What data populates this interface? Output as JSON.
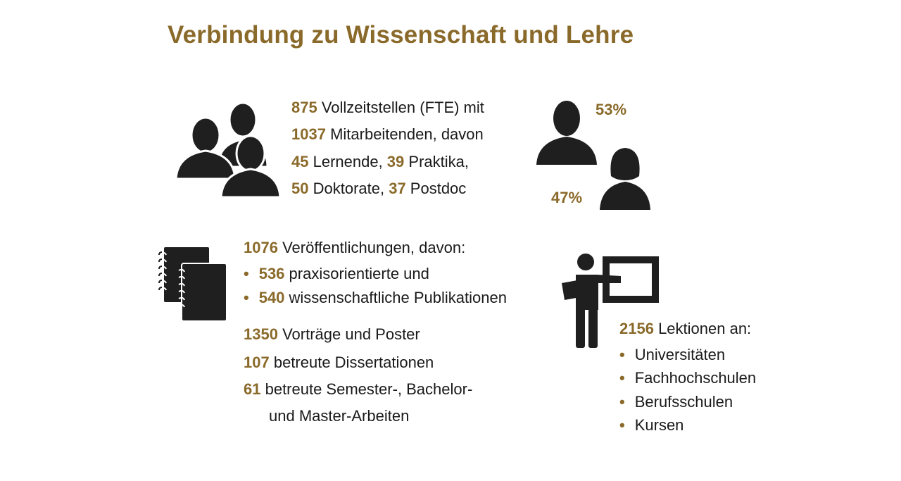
{
  "title": "Verbindung zu Wissenschaft und Lehre",
  "colors": {
    "accent": "#8a6a2a",
    "text": "#1a1a1a",
    "icon": "#1f1f1f"
  },
  "staff": {
    "lines": [
      [
        {
          "n": "875",
          "t": " Vollzeitstellen (FTE) mit"
        }
      ],
      [
        {
          "n": "1037",
          "t": " Mitarbeitenden, davon"
        }
      ],
      [
        {
          "n": "45",
          "t": " Lernende, "
        },
        {
          "n": "39",
          "t": " Praktika,"
        }
      ],
      [
        {
          "n": "50",
          "t": " Doktorate, "
        },
        {
          "n": "37",
          "t": " Postdoc"
        }
      ]
    ]
  },
  "gender": {
    "male_pct": "53%",
    "female_pct": "47%"
  },
  "publications": {
    "headline_num": "1076",
    "headline_text": " Veröffentlichungen, davon:",
    "items": [
      {
        "n": "536",
        "t": " praxisorientierte und"
      },
      {
        "n": "540",
        "t": " wissenschaftliche Publikationen"
      }
    ],
    "other": [
      {
        "n": "1350",
        "t": " Vorträge und Poster"
      },
      {
        "n": "107",
        "t": " betreute Dissertationen"
      },
      {
        "n": "61",
        "t": " betreute Semester-, Bachelor-"
      }
    ],
    "other_continuation": "und Master-Arbeiten"
  },
  "teaching": {
    "headline_num": "2156",
    "headline_text": " Lektionen an:",
    "items": [
      "Universitäten",
      "Fachhochschulen",
      "Berufsschulen",
      "Kursen"
    ]
  },
  "icons": [
    "group-people-icon",
    "male-person-icon",
    "female-person-icon",
    "notebooks-icon",
    "teacher-board-icon"
  ]
}
